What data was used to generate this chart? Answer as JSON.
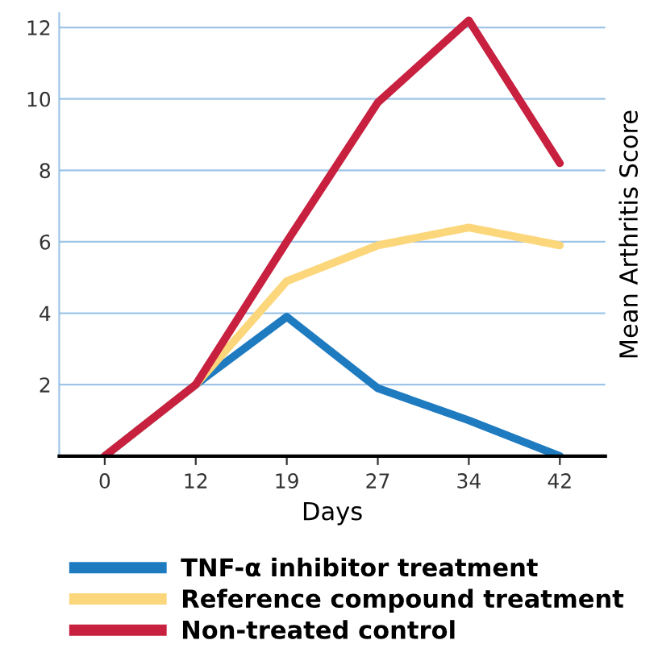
{
  "chart_data": {
    "type": "line",
    "xlabel": "Days",
    "ylabel": "Mean Arthritis Score",
    "categories": [
      "0",
      "12",
      "19",
      "27",
      "34",
      "42"
    ],
    "series": [
      {
        "name": "TNF-α inhibitor treatment",
        "color": "#1f7bc0",
        "values": [
          0,
          2,
          3.9,
          1.9,
          1.0,
          0
        ]
      },
      {
        "name": "Reference compound treatment",
        "color": "#fcd67a",
        "values": [
          0,
          2,
          4.9,
          5.9,
          6.4,
          5.9
        ]
      },
      {
        "name": "Non-treated control",
        "color": "#c8203f",
        "values": [
          0,
          2,
          6.0,
          9.9,
          12.2,
          8.2
        ]
      }
    ],
    "ylim": [
      0,
      12.4
    ],
    "yticks": [
      {
        "value": 0,
        "label": null
      },
      2,
      4,
      6,
      8,
      10,
      12
    ],
    "grid": "y",
    "legend": "bottom",
    "marker": "none",
    "line_style": "solid"
  }
}
